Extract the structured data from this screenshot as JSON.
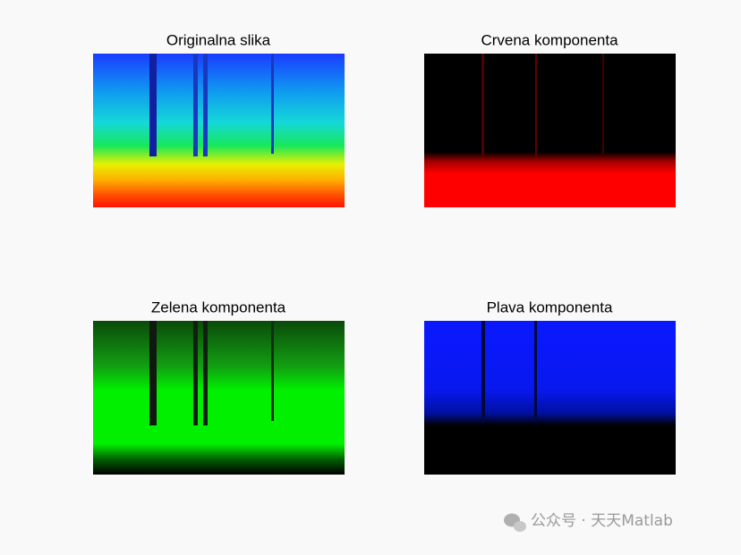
{
  "panels": [
    {
      "title": "Originalna slika"
    },
    {
      "title": "Crvena komponenta"
    },
    {
      "title": "Zelena komponenta"
    },
    {
      "title": "Plava komponenta"
    }
  ],
  "watermark": {
    "text": "公众号 · 天天Matlab"
  }
}
